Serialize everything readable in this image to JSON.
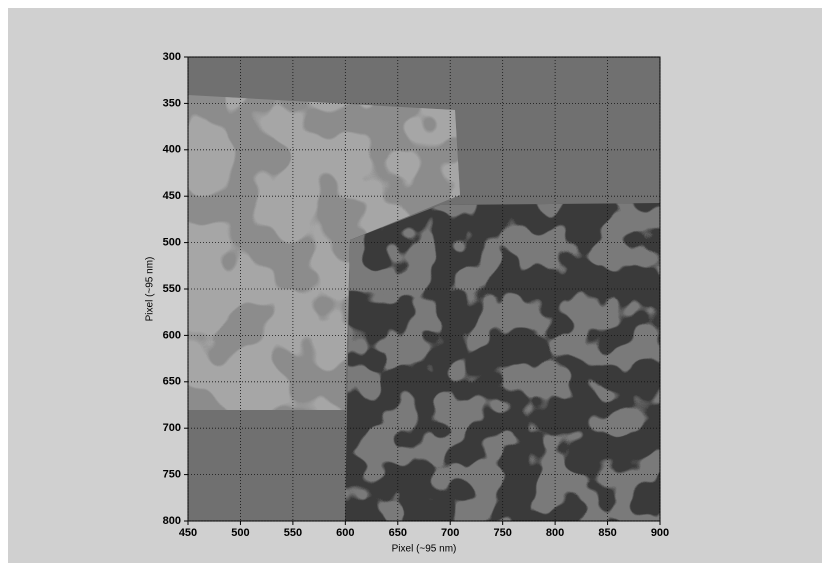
{
  "chart_data": {
    "type": "image",
    "xlabel": "Pixel (~95 nm)",
    "ylabel": "Pixel (~95 nm)",
    "xlim": [
      450,
      900
    ],
    "xticks": [
      450,
      500,
      550,
      600,
      650,
      700,
      750,
      800,
      850,
      900
    ],
    "ylim": [
      300,
      800
    ],
    "yticks": [
      300,
      350,
      400,
      450,
      500,
      550,
      600,
      650,
      700,
      750,
      800
    ],
    "y_reversed": true,
    "grid": true
  }
}
